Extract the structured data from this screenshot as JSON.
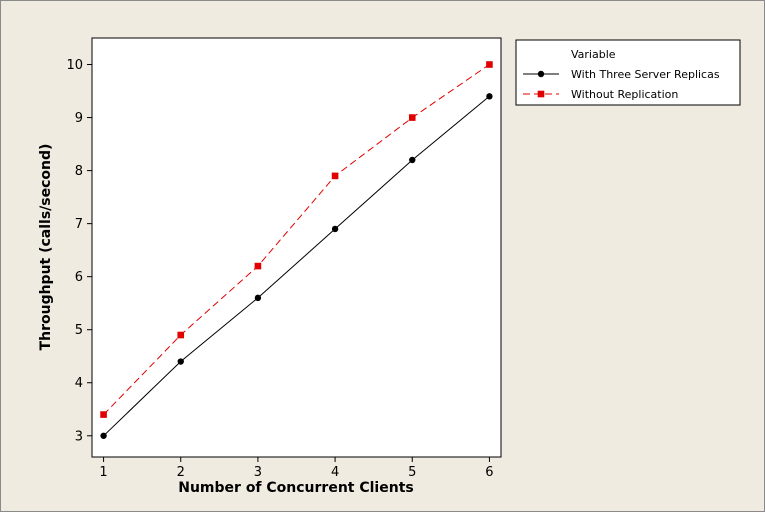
{
  "chart_data": {
    "type": "line",
    "title": "",
    "xlabel": "Number of Concurrent Clients",
    "ylabel": "Throughput (calls/second)",
    "x": [
      1,
      2,
      3,
      4,
      5,
      6
    ],
    "xlim": [
      0.85,
      6.15
    ],
    "ylim": [
      2.6,
      10.5
    ],
    "xticks": [
      "1",
      "2",
      "3",
      "4",
      "5",
      "6"
    ],
    "yticks": [
      "3",
      "4",
      "5",
      "6",
      "7",
      "8",
      "9",
      "10"
    ],
    "legend_title": "Variable",
    "legend_position": "right",
    "series": [
      {
        "name": "With Three Server Replicas",
        "values": [
          3.0,
          4.4,
          5.6,
          6.9,
          8.2,
          9.4
        ],
        "color": "#000000",
        "marker": "circle",
        "line_style": "solid"
      },
      {
        "name": "Without Replication",
        "values": [
          3.4,
          4.9,
          6.2,
          7.9,
          9.0,
          10.0
        ],
        "color": "#e00000",
        "marker": "square",
        "line_style": "dashed"
      }
    ]
  }
}
